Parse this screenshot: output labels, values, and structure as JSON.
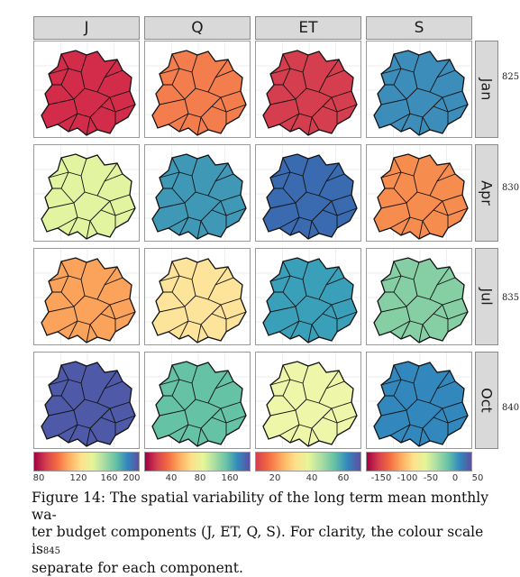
{
  "columns": [
    "J",
    "Q",
    "ET",
    "S"
  ],
  "rows": [
    "Jan",
    "Apr",
    "Jul",
    "Oct"
  ],
  "line_numbers": [
    "825",
    "830",
    "835",
    "840"
  ],
  "fills": [
    [
      "#d22c4a",
      "#f47d4d",
      "#d53e4f",
      "#3d8dba"
    ],
    [
      "#e3f4a1",
      "#3f98b5",
      "#3a6aaf",
      "#f68c4e"
    ],
    [
      "#fba35a",
      "#fde49a",
      "#3a9fb8",
      "#86cfa5"
    ],
    [
      "#4e5aa8",
      "#66c2a5",
      "#eef6a9",
      "#3288bd"
    ]
  ],
  "colourbars": [
    {
      "ticks": [
        "80",
        "120",
        "160",
        "200"
      ]
    },
    {
      "ticks": [
        "40",
        "80",
        "160"
      ]
    },
    {
      "ticks": [
        "20",
        "40",
        "60"
      ]
    },
    {
      "ticks": [
        "-150",
        "-100",
        "-50",
        "0",
        "50"
      ]
    }
  ],
  "caption": {
    "line1": "Figure 14: The spatial variability of the long term mean monthly wa-",
    "line2": "ter budget components (J, ET, Q, S). For clarity, the colour scale is",
    "line2_number": "845",
    "line3": "separate for each component."
  }
}
